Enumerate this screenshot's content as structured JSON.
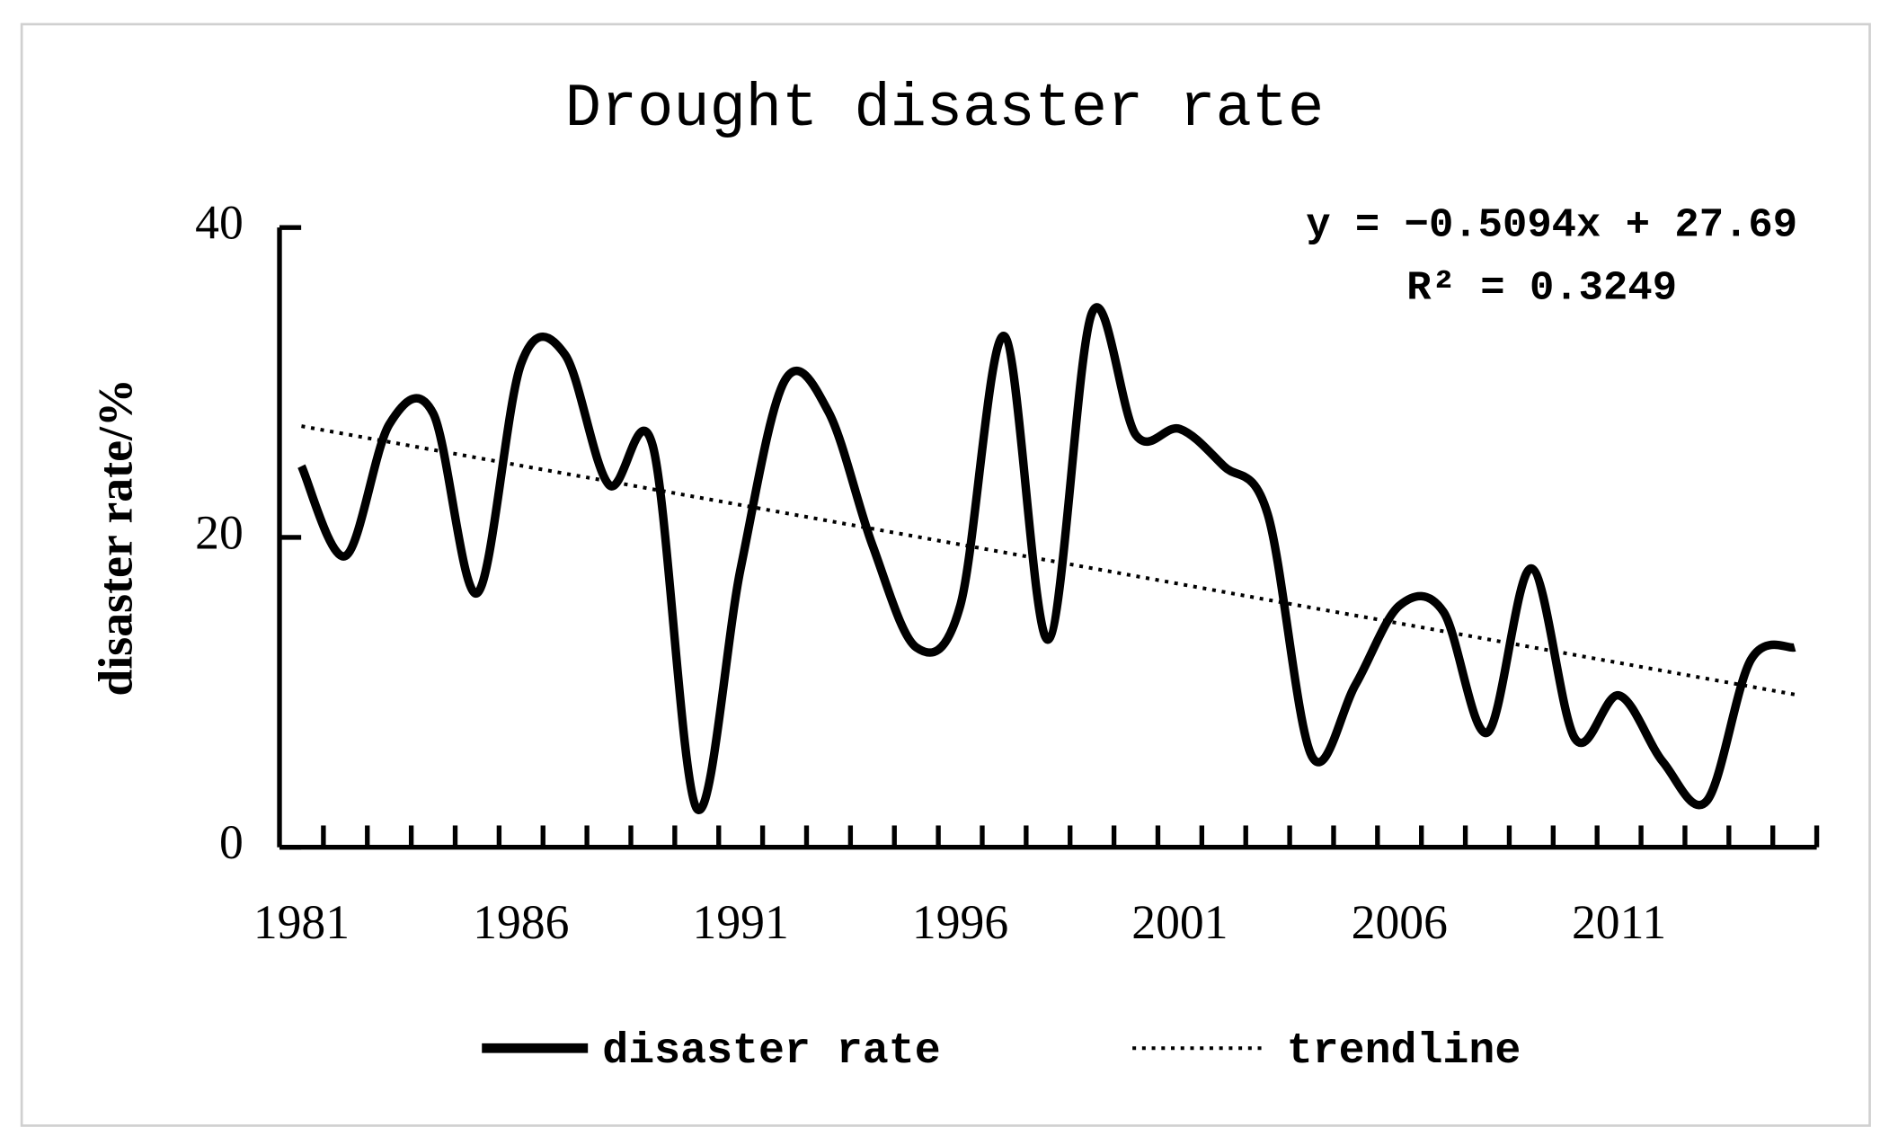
{
  "chart_data": {
    "type": "line",
    "title": "Drought disaster rate",
    "y_label": "disaster rate/%",
    "categories": [
      "1981",
      null,
      null,
      null,
      null,
      "1986",
      null,
      null,
      null,
      null,
      "1991",
      null,
      null,
      null,
      null,
      "1996",
      null,
      null,
      null,
      null,
      "2001",
      null,
      null,
      null,
      null,
      "2006",
      null,
      null,
      null,
      null,
      "2011",
      null,
      null,
      null,
      null
    ],
    "series": [
      {
        "name": "disaster rate",
        "color": "#000000",
        "style": "solid",
        "values": [
          24.6,
          18.8,
          27.3,
          28.0,
          16.4,
          31.2,
          31.8,
          23.4,
          25.9,
          2.5,
          18.0,
          30.1,
          28.1,
          19.5,
          12.9,
          15.6,
          33.0,
          13.4,
          34.5,
          26.6,
          27.0,
          24.6,
          21.5,
          5.9,
          10.5,
          15.6,
          15.2,
          7.4,
          18.0,
          7.0,
          9.8,
          5.5,
          3.0,
          12.1,
          12.9
        ]
      },
      {
        "name": "trendline",
        "color": "#000000",
        "style": "dotted",
        "values": [
          27.18,
          26.67,
          26.16,
          25.65,
          25.14,
          24.63,
          24.12,
          23.62,
          23.11,
          22.6,
          22.09,
          21.58,
          21.07,
          20.56,
          20.05,
          19.54,
          19.03,
          18.52,
          18.01,
          17.5,
          16.99,
          16.48,
          15.97,
          15.46,
          14.96,
          14.45,
          13.94,
          13.43,
          12.92,
          12.41,
          11.9,
          11.39,
          10.88,
          10.37,
          9.86
        ]
      }
    ],
    "annotations": [
      "y = −0.5094x + 27.69",
      "R² = 0.3249"
    ],
    "ylim": [
      0,
      40
    ],
    "yticks": [
      0,
      20,
      40
    ],
    "legend": "bottom"
  }
}
